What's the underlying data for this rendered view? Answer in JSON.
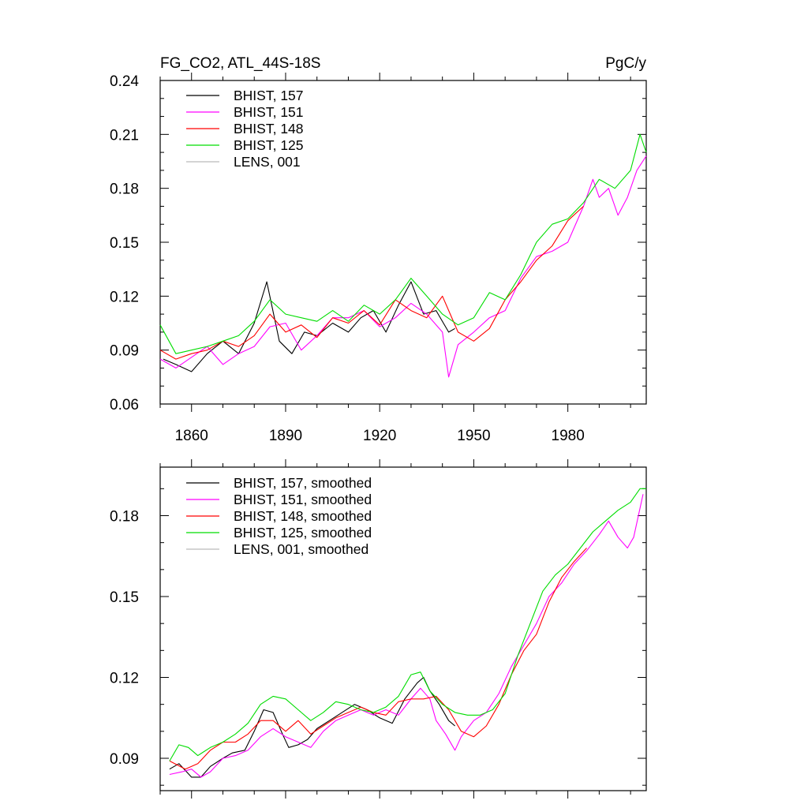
{
  "chart_data": [
    {
      "type": "line",
      "title_left": "FG_CO2, ATL_44S-18S",
      "title_right": "PgC/y",
      "xlim": [
        1850,
        2005
      ],
      "ylim": [
        0.06,
        0.24
      ],
      "xticks": [
        1860,
        1890,
        1920,
        1950,
        1980
      ],
      "xtick_labels": [
        "1860",
        "1890",
        "1920",
        "1950",
        "1980"
      ],
      "yticks": [
        0.06,
        0.09,
        0.12,
        0.15,
        0.18,
        0.21,
        0.24
      ],
      "ytick_labels": [
        "0.06",
        "0.09",
        "0.12",
        "0.15",
        "0.18",
        "0.21",
        "0.24"
      ],
      "legend_position": "top-left",
      "series": [
        {
          "name": "BHIST, 157",
          "color": "#000000",
          "x": [
            1851,
            1855,
            1860,
            1865,
            1870,
            1875,
            1880,
            1884,
            1888,
            1892,
            1896,
            1900,
            1905,
            1910,
            1914,
            1918,
            1922,
            1926,
            1930,
            1934,
            1938,
            1942,
            1944
          ],
          "y": [
            0.085,
            0.082,
            0.078,
            0.088,
            0.095,
            0.088,
            0.105,
            0.128,
            0.095,
            0.088,
            0.1,
            0.098,
            0.105,
            0.1,
            0.108,
            0.112,
            0.1,
            0.115,
            0.128,
            0.11,
            0.112,
            0.1,
            0.102
          ]
        },
        {
          "name": "BHIST, 151",
          "color": "#ff00ff",
          "x": [
            1850,
            1855,
            1860,
            1865,
            1870,
            1875,
            1880,
            1885,
            1890,
            1895,
            1900,
            1905,
            1910,
            1915,
            1920,
            1925,
            1930,
            1935,
            1940,
            1942,
            1945,
            1950,
            1955,
            1960,
            1965,
            1970,
            1975,
            1980,
            1985,
            1988,
            1990,
            1993,
            1996,
            1999,
            2002,
            2005
          ],
          "y": [
            0.085,
            0.08,
            0.086,
            0.092,
            0.082,
            0.088,
            0.092,
            0.103,
            0.105,
            0.09,
            0.098,
            0.108,
            0.108,
            0.112,
            0.103,
            0.108,
            0.116,
            0.11,
            0.1,
            0.075,
            0.093,
            0.1,
            0.108,
            0.112,
            0.13,
            0.142,
            0.145,
            0.15,
            0.17,
            0.185,
            0.175,
            0.18,
            0.165,
            0.175,
            0.19,
            0.198
          ]
        },
        {
          "name": "BHIST, 148",
          "color": "#ff0000",
          "x": [
            1850,
            1855,
            1860,
            1865,
            1870,
            1875,
            1880,
            1885,
            1890,
            1895,
            1900,
            1905,
            1910,
            1915,
            1920,
            1925,
            1930,
            1935,
            1940,
            1945,
            1950,
            1955,
            1960,
            1965,
            1970,
            1975,
            1980,
            1985
          ],
          "y": [
            0.09,
            0.085,
            0.088,
            0.09,
            0.095,
            0.092,
            0.098,
            0.11,
            0.1,
            0.104,
            0.097,
            0.108,
            0.105,
            0.112,
            0.104,
            0.118,
            0.112,
            0.108,
            0.12,
            0.1,
            0.095,
            0.102,
            0.118,
            0.128,
            0.14,
            0.148,
            0.162,
            0.17
          ]
        },
        {
          "name": "BHIST, 125",
          "color": "#00dd00",
          "x": [
            1850,
            1855,
            1860,
            1865,
            1870,
            1875,
            1880,
            1885,
            1890,
            1895,
            1900,
            1905,
            1910,
            1915,
            1920,
            1925,
            1930,
            1935,
            1940,
            1945,
            1950,
            1955,
            1960,
            1965,
            1970,
            1975,
            1980,
            1985,
            1990,
            1995,
            2000,
            2003,
            2005
          ],
          "y": [
            0.104,
            0.088,
            0.09,
            0.092,
            0.095,
            0.098,
            0.106,
            0.118,
            0.11,
            0.108,
            0.106,
            0.112,
            0.106,
            0.115,
            0.11,
            0.118,
            0.13,
            0.12,
            0.11,
            0.104,
            0.108,
            0.122,
            0.118,
            0.132,
            0.15,
            0.16,
            0.163,
            0.172,
            0.185,
            0.18,
            0.19,
            0.21,
            0.2
          ]
        },
        {
          "name": "LENS, 001",
          "color": "#bbbbbb",
          "x": [],
          "y": []
        }
      ]
    },
    {
      "type": "line",
      "xlim": [
        1850,
        2005
      ],
      "ylim": [
        0.078,
        0.198
      ],
      "xticks": [
        1860,
        1890,
        1920,
        1950,
        1980
      ],
      "yticks": [
        0.09,
        0.12,
        0.15,
        0.18
      ],
      "ytick_labels": [
        "0.09",
        "0.12",
        "0.15",
        "0.18"
      ],
      "legend_position": "top-left",
      "series": [
        {
          "name": "BHIST, 157, smoothed",
          "color": "#000000",
          "x": [
            1853,
            1856,
            1860,
            1863,
            1866,
            1870,
            1873,
            1877,
            1880,
            1883,
            1886,
            1889,
            1891,
            1894,
            1897,
            1900,
            1904,
            1908,
            1912,
            1916,
            1920,
            1924,
            1928,
            1932,
            1934,
            1936,
            1939,
            1942,
            1944
          ],
          "y": [
            0.086,
            0.088,
            0.083,
            0.083,
            0.087,
            0.09,
            0.092,
            0.093,
            0.1,
            0.108,
            0.107,
            0.099,
            0.094,
            0.095,
            0.097,
            0.101,
            0.104,
            0.107,
            0.11,
            0.108,
            0.105,
            0.103,
            0.112,
            0.118,
            0.12,
            0.115,
            0.11,
            0.104,
            0.102
          ]
        },
        {
          "name": "BHIST, 151, smoothed",
          "color": "#ff00ff",
          "x": [
            1853,
            1857,
            1860,
            1863,
            1866,
            1870,
            1874,
            1878,
            1882,
            1886,
            1890,
            1894,
            1898,
            1902,
            1906,
            1910,
            1914,
            1918,
            1922,
            1926,
            1930,
            1933,
            1936,
            1938,
            1941,
            1944,
            1946,
            1950,
            1954,
            1958,
            1962,
            1966,
            1970,
            1974,
            1978,
            1982,
            1986,
            1990,
            1993,
            1996,
            1999,
            2001,
            2004
          ],
          "y": [
            0.084,
            0.085,
            0.086,
            0.083,
            0.085,
            0.09,
            0.091,
            0.093,
            0.098,
            0.101,
            0.098,
            0.096,
            0.094,
            0.1,
            0.104,
            0.106,
            0.108,
            0.106,
            0.108,
            0.106,
            0.112,
            0.116,
            0.112,
            0.104,
            0.099,
            0.093,
            0.098,
            0.104,
            0.107,
            0.114,
            0.124,
            0.132,
            0.14,
            0.15,
            0.155,
            0.162,
            0.167,
            0.173,
            0.178,
            0.172,
            0.168,
            0.172,
            0.188
          ]
        },
        {
          "name": "BHIST, 148, smoothed",
          "color": "#ff0000",
          "x": [
            1853,
            1858,
            1862,
            1866,
            1870,
            1874,
            1878,
            1882,
            1886,
            1890,
            1894,
            1898,
            1902,
            1906,
            1910,
            1914,
            1918,
            1922,
            1926,
            1930,
            1934,
            1938,
            1942,
            1946,
            1950,
            1954,
            1958,
            1962,
            1966,
            1970,
            1974,
            1978,
            1982,
            1986
          ],
          "y": [
            0.089,
            0.086,
            0.088,
            0.093,
            0.096,
            0.096,
            0.099,
            0.104,
            0.104,
            0.1,
            0.104,
            0.099,
            0.102,
            0.105,
            0.107,
            0.109,
            0.107,
            0.106,
            0.111,
            0.112,
            0.112,
            0.113,
            0.108,
            0.1,
            0.098,
            0.102,
            0.11,
            0.121,
            0.13,
            0.136,
            0.148,
            0.157,
            0.163,
            0.168
          ]
        },
        {
          "name": "BHIST, 125, smoothed",
          "color": "#00dd00",
          "x": [
            1853,
            1856,
            1859,
            1862,
            1866,
            1870,
            1874,
            1878,
            1882,
            1886,
            1890,
            1894,
            1898,
            1902,
            1906,
            1910,
            1914,
            1918,
            1922,
            1926,
            1930,
            1933,
            1936,
            1940,
            1944,
            1948,
            1952,
            1956,
            1960,
            1964,
            1968,
            1972,
            1976,
            1980,
            1984,
            1988,
            1992,
            1996,
            2000,
            2003,
            2005
          ],
          "y": [
            0.089,
            0.095,
            0.094,
            0.091,
            0.094,
            0.096,
            0.099,
            0.103,
            0.11,
            0.113,
            0.112,
            0.108,
            0.104,
            0.107,
            0.111,
            0.11,
            0.108,
            0.107,
            0.109,
            0.113,
            0.121,
            0.122,
            0.115,
            0.11,
            0.107,
            0.106,
            0.106,
            0.108,
            0.114,
            0.128,
            0.14,
            0.152,
            0.158,
            0.162,
            0.168,
            0.174,
            0.178,
            0.182,
            0.185,
            0.19,
            0.19
          ]
        },
        {
          "name": "LENS, 001, smoothed",
          "color": "#bbbbbb",
          "x": [],
          "y": []
        }
      ]
    }
  ]
}
